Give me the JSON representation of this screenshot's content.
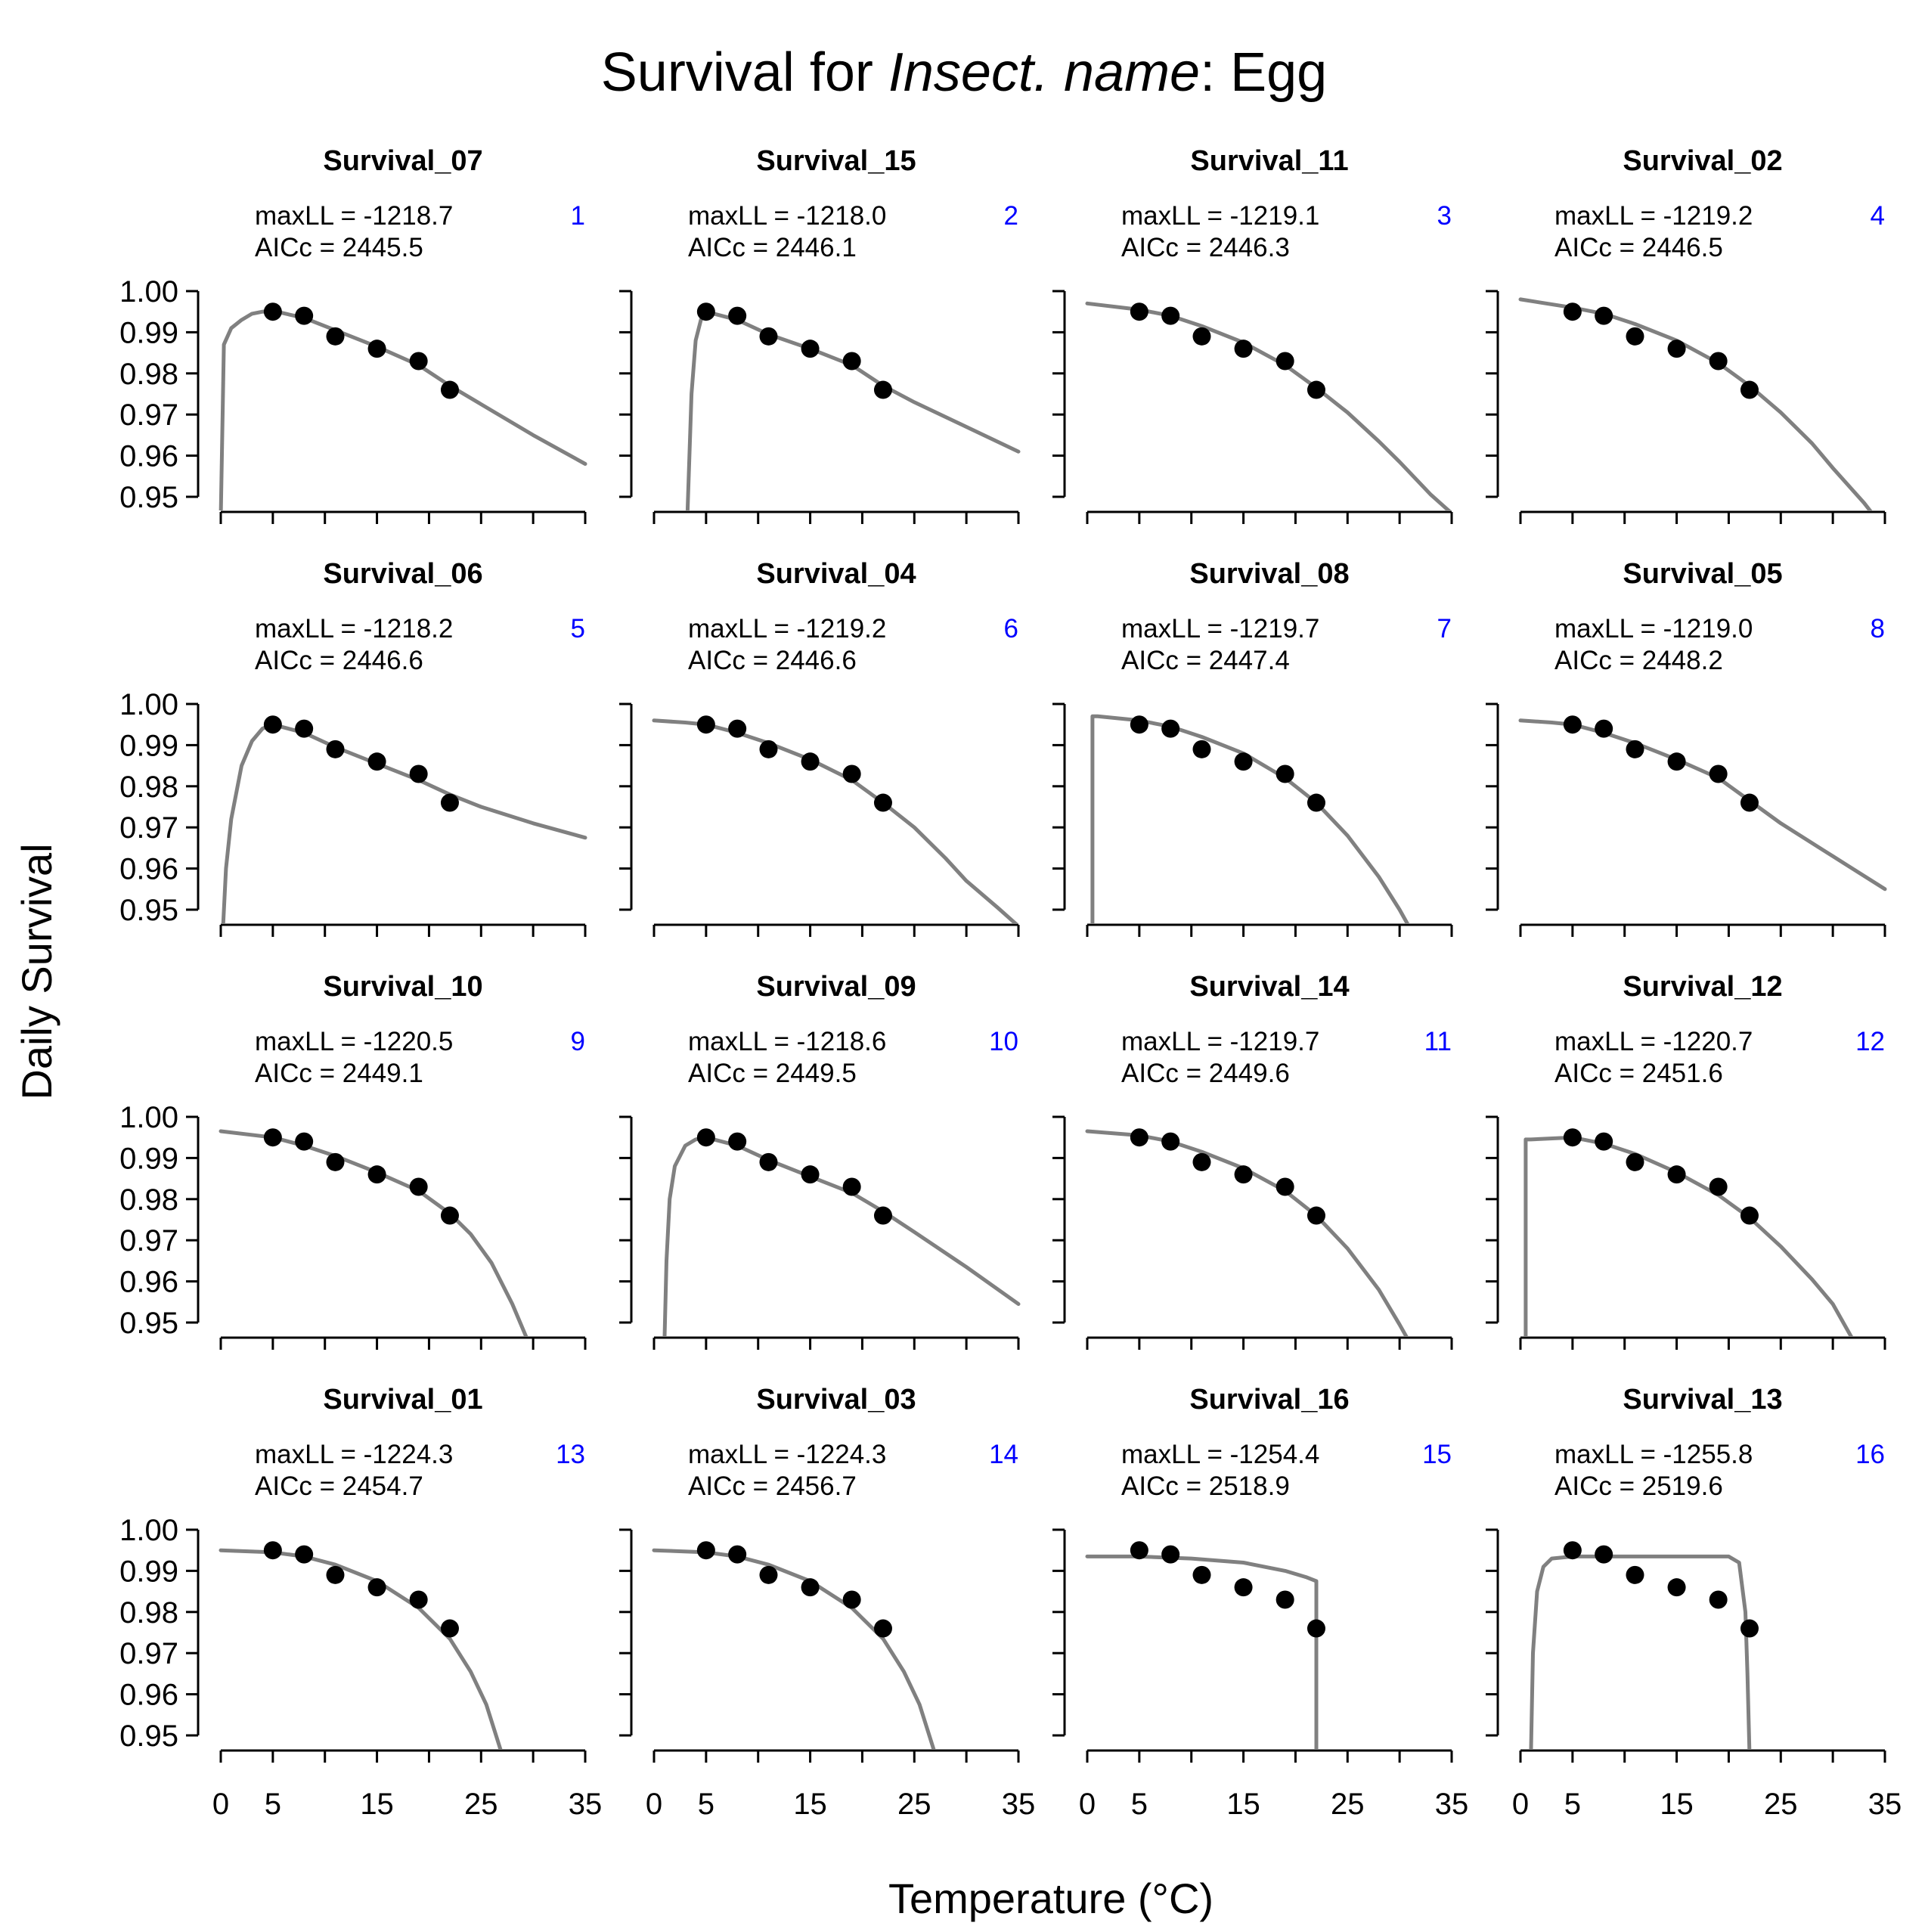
{
  "title": {
    "prefix": "Survival for ",
    "italic": "Insect. name",
    "suffix": ": Egg"
  },
  "ylabel": "Daily Survival",
  "xlabel": "Temperature (°C)",
  "colors": {
    "curve": "#808080",
    "points": "#000000",
    "rank": "#0000ff",
    "axis": "#000000"
  },
  "chart_data": {
    "type": "line",
    "xlim": [
      0,
      35
    ],
    "ylim": [
      0.95,
      1.0
    ],
    "x_ticks": [
      0,
      5,
      10,
      15,
      20,
      25,
      30,
      35
    ],
    "x_tick_labels": [
      "0",
      "5",
      "",
      "15",
      "",
      "25",
      "",
      "35"
    ],
    "y_ticks": [
      0.95,
      0.96,
      0.97,
      0.98,
      0.99,
      1.0
    ],
    "y_tick_labels": [
      "0.95",
      "0.96",
      "0.97",
      "0.98",
      "0.99",
      "1.00"
    ],
    "observed_points": {
      "x": [
        5,
        8,
        11,
        15,
        19,
        22
      ],
      "y": [
        0.995,
        0.994,
        0.989,
        0.986,
        0.983,
        0.976
      ]
    },
    "panels": [
      {
        "name": "Survival_07",
        "maxLL": "maxLL = -1218.7",
        "AICc": "AICc = 2445.5",
        "rank": "1",
        "curve": {
          "x": [
            0,
            0.3,
            1,
            2,
            3,
            4,
            5,
            8,
            11,
            15,
            19,
            22,
            25,
            30,
            35
          ],
          "y": [
            0.945,
            0.987,
            0.991,
            0.993,
            0.9945,
            0.995,
            0.9952,
            0.9935,
            0.9905,
            0.9865,
            0.982,
            0.977,
            0.9725,
            0.965,
            0.958
          ]
        }
      },
      {
        "name": "Survival_15",
        "maxLL": "maxLL = -1218.0",
        "AICc": "AICc = 2446.1",
        "rank": "2",
        "curve": {
          "x": [
            3.2,
            3.6,
            4,
            4.5,
            5,
            8,
            11,
            15,
            19,
            22,
            25,
            30,
            35
          ],
          "y": [
            0.945,
            0.975,
            0.988,
            0.993,
            0.995,
            0.993,
            0.9895,
            0.986,
            0.982,
            0.977,
            0.973,
            0.967,
            0.961
          ]
        }
      },
      {
        "name": "Survival_11",
        "maxLL": "maxLL = -1219.1",
        "AICc": "AICc = 2446.3",
        "rank": "3",
        "curve": {
          "x": [
            0,
            5,
            8,
            11,
            15,
            19,
            22,
            25,
            28,
            30,
            33,
            35
          ],
          "y": [
            0.997,
            0.9955,
            0.994,
            0.9915,
            0.9875,
            0.982,
            0.9765,
            0.9705,
            0.9635,
            0.9585,
            0.9505,
            0.946
          ]
        }
      },
      {
        "name": "Survival_02",
        "maxLL": "maxLL = -1219.2",
        "AICc": "AICc = 2446.5",
        "rank": "4",
        "curve": {
          "x": [
            0,
            5,
            8,
            11,
            15,
            19,
            22,
            25,
            28,
            30,
            33,
            35
          ],
          "y": [
            0.998,
            0.996,
            0.9945,
            0.992,
            0.988,
            0.9825,
            0.977,
            0.9705,
            0.963,
            0.957,
            0.9485,
            0.942
          ]
        }
      },
      {
        "name": "Survival_06",
        "maxLL": "maxLL = -1218.2",
        "AICc": "AICc = 2446.6",
        "rank": "5",
        "curve": {
          "x": [
            0.2,
            0.5,
            1,
            2,
            3,
            4,
            5,
            8,
            11,
            15,
            19,
            22,
            25,
            30,
            35
          ],
          "y": [
            0.945,
            0.96,
            0.972,
            0.985,
            0.991,
            0.994,
            0.995,
            0.993,
            0.9895,
            0.9855,
            0.9815,
            0.978,
            0.975,
            0.971,
            0.9675
          ]
        }
      },
      {
        "name": "Survival_04",
        "maxLL": "maxLL = -1219.2",
        "AICc": "AICc = 2446.6",
        "rank": "6",
        "curve": {
          "x": [
            0,
            3,
            5,
            8,
            11,
            15,
            19,
            22,
            25,
            28,
            30,
            33,
            35
          ],
          "y": [
            0.996,
            0.9955,
            0.995,
            0.993,
            0.9905,
            0.9865,
            0.9815,
            0.976,
            0.97,
            0.9625,
            0.957,
            0.9505,
            0.946
          ]
        }
      },
      {
        "name": "Survival_08",
        "maxLL": "maxLL = -1219.7",
        "AICc": "AICc = 2447.4",
        "rank": "7",
        "curve": {
          "x": [
            0.5,
            0.5,
            1,
            5,
            8,
            11,
            15,
            19,
            22,
            25,
            28,
            30,
            31.1
          ],
          "y": [
            0.945,
            0.997,
            0.997,
            0.996,
            0.9945,
            0.992,
            0.988,
            0.982,
            0.976,
            0.968,
            0.958,
            0.95,
            0.945
          ]
        }
      },
      {
        "name": "Survival_05",
        "maxLL": "maxLL = -1219.0",
        "AICc": "AICc = 2448.2",
        "rank": "8",
        "curve": {
          "x": [
            0,
            3,
            5,
            8,
            11,
            15,
            19,
            22,
            25,
            30,
            35
          ],
          "y": [
            0.996,
            0.9955,
            0.995,
            0.993,
            0.9905,
            0.9865,
            0.982,
            0.9765,
            0.971,
            0.963,
            0.955
          ]
        }
      },
      {
        "name": "Survival_10",
        "maxLL": "maxLL = -1220.5",
        "AICc": "AICc = 2449.1",
        "rank": "9",
        "curve": {
          "x": [
            0,
            5,
            8,
            11,
            15,
            19,
            22,
            24,
            26,
            28,
            29.5
          ],
          "y": [
            0.9965,
            0.995,
            0.993,
            0.9905,
            0.9865,
            0.982,
            0.9765,
            0.9715,
            0.9645,
            0.9545,
            0.9455
          ]
        }
      },
      {
        "name": "Survival_09",
        "maxLL": "maxLL = -1218.6",
        "AICc": "AICc = 2449.5",
        "rank": "10",
        "curve": {
          "x": [
            1,
            1.2,
            1.5,
            2,
            3,
            4,
            5,
            8,
            11,
            15,
            19,
            22,
            25,
            30,
            35
          ],
          "y": [
            0.945,
            0.965,
            0.98,
            0.988,
            0.993,
            0.9945,
            0.995,
            0.993,
            0.9895,
            0.9855,
            0.9815,
            0.977,
            0.972,
            0.9635,
            0.9545
          ]
        }
      },
      {
        "name": "Survival_14",
        "maxLL": "maxLL = -1219.7",
        "AICc": "AICc = 2449.6",
        "rank": "11",
        "curve": {
          "x": [
            0,
            5,
            8,
            11,
            15,
            19,
            22,
            25,
            28,
            30,
            31
          ],
          "y": [
            0.9965,
            0.9955,
            0.994,
            0.9915,
            0.9875,
            0.982,
            0.976,
            0.968,
            0.958,
            0.9495,
            0.945
          ]
        }
      },
      {
        "name": "Survival_12",
        "maxLL": "maxLL = -1220.7",
        "AICc": "AICc = 2451.6",
        "rank": "12",
        "curve": {
          "x": [
            0.5,
            0.5,
            1,
            5,
            8,
            11,
            15,
            19,
            22,
            25,
            28,
            30,
            32
          ],
          "y": [
            0.945,
            0.9945,
            0.9945,
            0.995,
            0.9935,
            0.991,
            0.9865,
            0.981,
            0.9755,
            0.9685,
            0.9605,
            0.9545,
            0.9455
          ]
        }
      },
      {
        "name": "Survival_01",
        "maxLL": "maxLL = -1224.3",
        "AICc": "AICc = 2454.7",
        "rank": "13",
        "curve": {
          "x": [
            0,
            5,
            8,
            11,
            15,
            19,
            22,
            24,
            25.5,
            27
          ],
          "y": [
            0.995,
            0.9945,
            0.9935,
            0.9915,
            0.9875,
            0.981,
            0.9735,
            0.9655,
            0.9575,
            0.9455
          ]
        }
      },
      {
        "name": "Survival_03",
        "maxLL": "maxLL = -1224.3",
        "AICc": "AICc = 2456.7",
        "rank": "14",
        "curve": {
          "x": [
            0,
            5,
            8,
            11,
            15,
            19,
            22,
            24,
            25.5,
            27
          ],
          "y": [
            0.995,
            0.9945,
            0.9935,
            0.9915,
            0.9875,
            0.981,
            0.9735,
            0.9655,
            0.9575,
            0.9455
          ]
        }
      },
      {
        "name": "Survival_16",
        "maxLL": "maxLL = -1254.4",
        "AICc": "AICc = 2518.9",
        "rank": "15",
        "curve": {
          "x": [
            0,
            5,
            10,
            15,
            19,
            21,
            22,
            22,
            22
          ],
          "y": [
            0.9935,
            0.9935,
            0.993,
            0.992,
            0.99,
            0.9885,
            0.9875,
            0.97,
            0.945
          ]
        }
      },
      {
        "name": "Survival_13",
        "maxLL": "maxLL = -1255.8",
        "AICc": "AICc = 2519.6",
        "rank": "16",
        "curve": {
          "x": [
            1,
            1.2,
            1.6,
            2.2,
            3,
            5,
            10,
            15,
            20,
            21,
            21.6,
            21.8,
            22
          ],
          "y": [
            0.945,
            0.97,
            0.985,
            0.991,
            0.993,
            0.9935,
            0.9935,
            0.9935,
            0.9935,
            0.992,
            0.98,
            0.965,
            0.945
          ]
        }
      }
    ]
  }
}
